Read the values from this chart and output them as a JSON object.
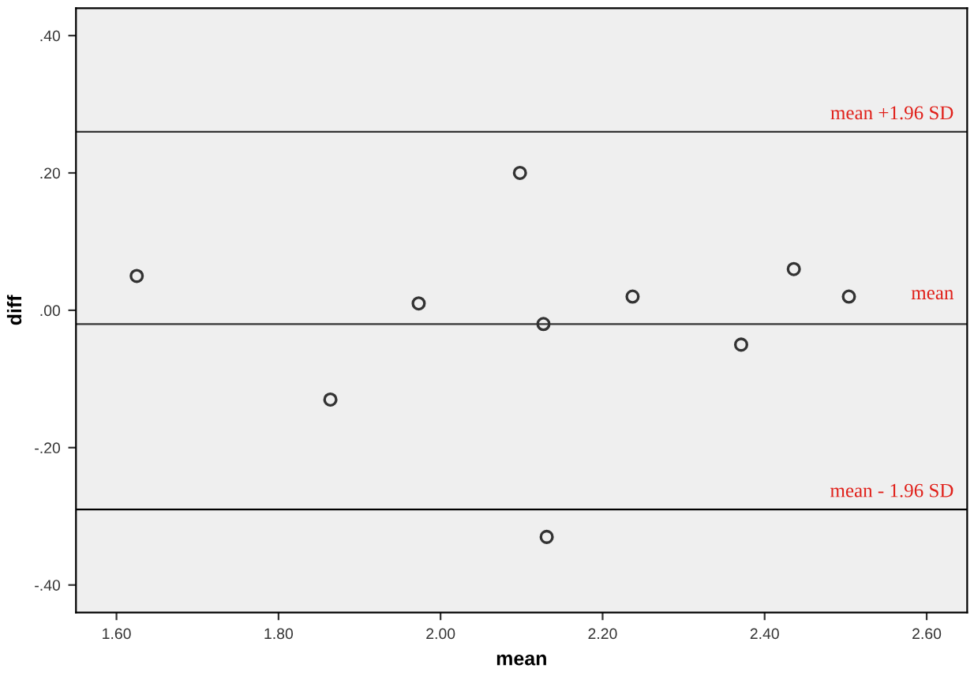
{
  "chart_data": {
    "type": "scatter",
    "xlabel": "mean",
    "ylabel": "diff",
    "x": [
      1.625,
      1.864,
      1.973,
      2.098,
      2.127,
      2.131,
      2.237,
      2.371,
      2.436,
      2.504
    ],
    "series": [
      {
        "color": "#333333",
        "values": [
          0.05,
          -0.13,
          0.01,
          0.2,
          -0.02,
          -0.33,
          0.02,
          -0.05,
          0.06,
          0.02
        ]
      }
    ],
    "marker": "circle",
    "grid": false,
    "legend": false,
    "xlim": [
      1.55,
      2.65
    ],
    "xticks": [
      {
        "value": 1.6,
        "label": "1.60"
      },
      {
        "value": 1.8,
        "label": "1.80"
      },
      {
        "value": 2.0,
        "label": "2.00"
      },
      {
        "value": 2.2,
        "label": "2.20"
      },
      {
        "value": 2.4,
        "label": "2.40"
      },
      {
        "value": 2.6,
        "label": "2.60"
      }
    ],
    "ylim": [
      -0.44,
      0.44
    ],
    "yticks": [
      {
        "value": -0.4,
        "label": "-.40"
      },
      {
        "value": -0.2,
        "label": "-.20"
      },
      {
        "value": 0,
        "label": ".00"
      },
      {
        "value": 0.2,
        "label": ".20"
      },
      {
        "value": 0.4,
        "label": ".40"
      }
    ],
    "ref_lines": [
      {
        "axis": "y",
        "value": 0.26,
        "label": "mean +1.96 SD",
        "color": "#333333"
      },
      {
        "axis": "y",
        "value": -0.02,
        "label": "mean",
        "color": "#333333"
      },
      {
        "axis": "y",
        "value": -0.29,
        "label": "mean - 1.96 SD",
        "color": "#000000"
      }
    ]
  }
}
